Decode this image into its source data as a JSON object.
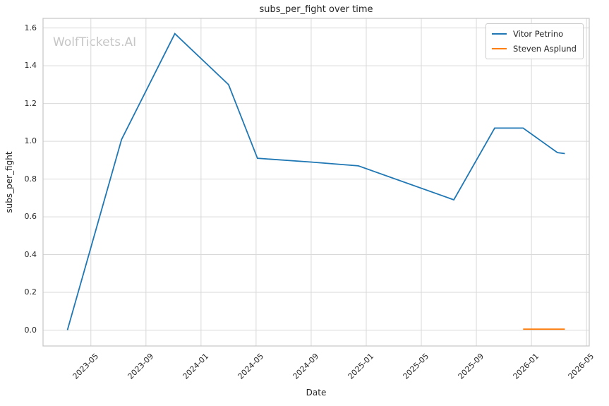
{
  "chart_data": {
    "type": "line",
    "title": "subs_per_fight over time",
    "xlabel": "Date",
    "ylabel": "subs_per_fight",
    "grid": true,
    "legend_position": "upper right",
    "background": "#ffffff",
    "grid_color": "#d9d9d9",
    "spine_color": "#c6c6c6",
    "xlim": [
      "2023-01-17",
      "2026-05-07"
    ],
    "ylim": [
      -0.084,
      1.651
    ],
    "x_ticks": [
      {
        "date": "2023-05-01",
        "label": "2023-05"
      },
      {
        "date": "2023-09-01",
        "label": "2023-09"
      },
      {
        "date": "2024-01-01",
        "label": "2024-01"
      },
      {
        "date": "2024-05-01",
        "label": "2024-05"
      },
      {
        "date": "2024-09-01",
        "label": "2024-09"
      },
      {
        "date": "2025-01-01",
        "label": "2025-01"
      },
      {
        "date": "2025-05-01",
        "label": "2025-05"
      },
      {
        "date": "2025-09-01",
        "label": "2025-09"
      },
      {
        "date": "2026-01-01",
        "label": "2026-01"
      },
      {
        "date": "2026-05-01",
        "label": "2026-05"
      }
    ],
    "y_ticks": [
      {
        "value": 0.0,
        "label": "0.0"
      },
      {
        "value": 0.2,
        "label": "0.2"
      },
      {
        "value": 0.4,
        "label": "0.4"
      },
      {
        "value": 0.6,
        "label": "0.6"
      },
      {
        "value": 0.8,
        "label": "0.8"
      },
      {
        "value": 1.0,
        "label": "1.0"
      },
      {
        "value": 1.2,
        "label": "1.2"
      },
      {
        "value": 1.4,
        "label": "1.4"
      },
      {
        "value": 1.6,
        "label": "1.6"
      }
    ],
    "series": [
      {
        "name": "Vitor Petrino",
        "color": "#1f77b4",
        "points": [
          {
            "date": "2023-03-10",
            "value": 0.0
          },
          {
            "date": "2023-07-08",
            "value": 1.01
          },
          {
            "date": "2023-11-04",
            "value": 1.57
          },
          {
            "date": "2024-03-01",
            "value": 1.3
          },
          {
            "date": "2024-05-04",
            "value": 0.91
          },
          {
            "date": "2024-08-31",
            "value": 0.89
          },
          {
            "date": "2024-12-14",
            "value": 0.87
          },
          {
            "date": "2025-07-12",
            "value": 0.69
          },
          {
            "date": "2025-10-11",
            "value": 1.07
          },
          {
            "date": "2025-12-13",
            "value": 1.07
          },
          {
            "date": "2026-02-28",
            "value": 0.94
          },
          {
            "date": "2026-03-14",
            "value": 0.935
          }
        ]
      },
      {
        "name": "Steven Asplund",
        "color": "#ff7f0e",
        "points": [
          {
            "date": "2025-12-13",
            "value": 0.005
          },
          {
            "date": "2026-03-14",
            "value": 0.005
          }
        ]
      }
    ],
    "annotations": [
      {
        "text": "WolfTickets.AI",
        "position": "top-left",
        "color": "#c6c6c6"
      }
    ]
  }
}
